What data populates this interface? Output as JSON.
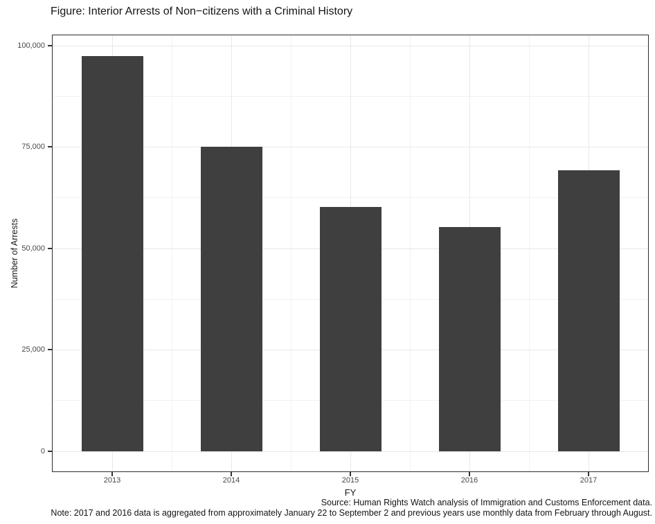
{
  "figure": {
    "title": "Figure: Interior Arrests of Non−citizens with a Criminal History"
  },
  "chart_data": {
    "type": "bar",
    "title": "Figure: Interior Arrests of Non−citizens with a Criminal History",
    "categories": [
      "2013",
      "2014",
      "2015",
      "2016",
      "2017"
    ],
    "values": [
      97300,
      75000,
      60200,
      55300,
      69300
    ],
    "xlabel": "FY",
    "ylabel": "Number of Arrests",
    "ylim": [
      0,
      100000
    ],
    "ytick_values": [
      0,
      25000,
      50000,
      75000,
      100000
    ],
    "ytick_labels": [
      "0",
      "25,000",
      "50,000",
      "75,000",
      "100,000"
    ],
    "minor_ytick_values": [
      12500,
      37500,
      62500,
      87500
    ],
    "grid": "major and minor gridlines, light gray on white, black panel border",
    "legend_position": "none",
    "bar_color": "#3f3f3f"
  },
  "footer": {
    "source": "Source: Human Rights Watch analysis of Immigration and Customs Enforcement data.",
    "note": "Note: 2017 and 2016 data is aggregated from approximately January 22 to September 2 and previous years use monthly data from February through August."
  },
  "colors": {
    "bar": "#3f3f3f",
    "panel_border": "#2b2b2b",
    "grid_major": "#e7e7e7",
    "grid_minor": "#f2f2f2",
    "tick_mark": "#333333",
    "tick_label": "#474747",
    "text": "#141414",
    "background": "#ffffff"
  }
}
